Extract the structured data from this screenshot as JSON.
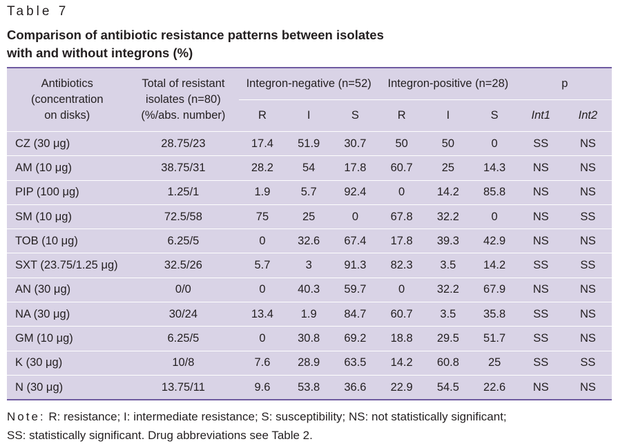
{
  "table_label": "Table 7",
  "caption_line1": "Comparison of antibiotic resistance patterns between isolates",
  "caption_line2": "with and without integrons (%)",
  "headers": {
    "antibiotics_line1": "Antibiotics",
    "antibiotics_line2": "(concentration",
    "antibiotics_line3": "on disks)",
    "total_line1": "Total of resistant",
    "total_line2": "isolates (n=80)",
    "total_line3": "(%/abs. number)",
    "integron_negative": "Integron-negative (n=52)",
    "integron_positive": "Integron-positive (n=28)",
    "p": "p",
    "R": "R",
    "I": "I",
    "S": "S",
    "int1": "Int1",
    "int2": "Int2"
  },
  "rows": [
    [
      "CZ (30 μg)",
      "28.75/23",
      "17.4",
      "51.9",
      "30.7",
      "50",
      "50",
      "0",
      "SS",
      "NS"
    ],
    [
      "AM (10 μg)",
      "38.75/31",
      "28.2",
      "54",
      "17.8",
      "60.7",
      "25",
      "14.3",
      "NS",
      "NS"
    ],
    [
      "PIP (100 μg)",
      "1.25/1",
      "1.9",
      "5.7",
      "92.4",
      "0",
      "14.2",
      "85.8",
      "NS",
      "NS"
    ],
    [
      "SM (10 μg)",
      "72.5/58",
      "75",
      "25",
      "0",
      "67.8",
      "32.2",
      "0",
      "NS",
      "SS"
    ],
    [
      "TOB (10 μg)",
      "6.25/5",
      "0",
      "32.6",
      "67.4",
      "17.8",
      "39.3",
      "42.9",
      "NS",
      "NS"
    ],
    [
      "SXT (23.75/1.25 μg)",
      "32.5/26",
      "5.7",
      "3",
      "91.3",
      "82.3",
      "3.5",
      "14.2",
      "SS",
      "SS"
    ],
    [
      "AN (30 μg)",
      "0/0",
      "0",
      "40.3",
      "59.7",
      "0",
      "32.2",
      "67.9",
      "NS",
      "NS"
    ],
    [
      "NA (30 μg)",
      "30/24",
      "13.4",
      "1.9",
      "84.7",
      "60.7",
      "3.5",
      "35.8",
      "SS",
      "NS"
    ],
    [
      "GM (10 μg)",
      "6.25/5",
      "0",
      "30.8",
      "69.2",
      "18.8",
      "29.5",
      "51.7",
      "SS",
      "NS"
    ],
    [
      "K (30 μg)",
      "10/8",
      "7.6",
      "28.9",
      "63.5",
      "14.2",
      "60.8",
      "25",
      "SS",
      "SS"
    ],
    [
      "N (30 μg)",
      "13.75/11",
      "9.6",
      "53.8",
      "36.6",
      "22.9",
      "54.5",
      "22.6",
      "NS",
      "NS"
    ]
  ],
  "note_label": "Note:",
  "note_line1": "R: resistance; I: intermediate resistance; S: susceptibility; NS: not statistically significant;",
  "note_line2": "SS: statistically significant. Drug abbreviations see Table 2.",
  "colors": {
    "table_fill": "#d9d3e6",
    "rule": "#6e5aa0",
    "text": "#231f20"
  }
}
